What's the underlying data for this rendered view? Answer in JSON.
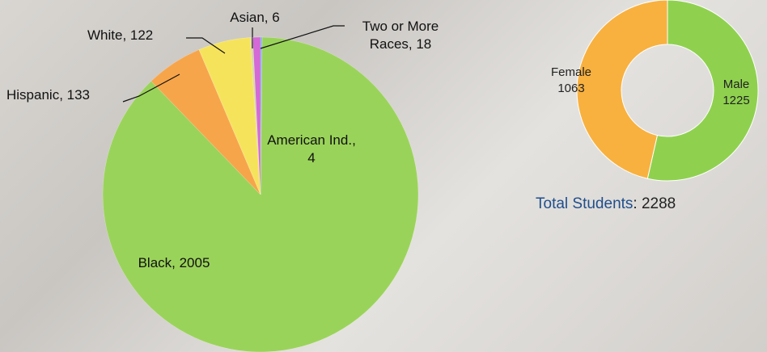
{
  "chart_data": [
    {
      "type": "pie",
      "categories": [
        "American Ind., 4",
        "Black, 2005",
        "Hispanic, 133",
        "White, 122",
        "Asian, 6",
        "Two or More Races, 18"
      ],
      "values": [
        4,
        2005,
        133,
        122,
        6,
        18
      ],
      "colors": [
        "#7fb0e0",
        "#9ad35a",
        "#f7a54a",
        "#f6e35c",
        "#d9d9a0",
        "#d36ad6"
      ]
    },
    {
      "type": "donut",
      "categories": [
        "Male",
        "Female"
      ],
      "values": [
        1225,
        1063
      ],
      "colors": [
        "#8fd14f",
        "#f8b13f"
      ],
      "total_label": "Total Students",
      "total_text": ": 2288"
    }
  ]
}
